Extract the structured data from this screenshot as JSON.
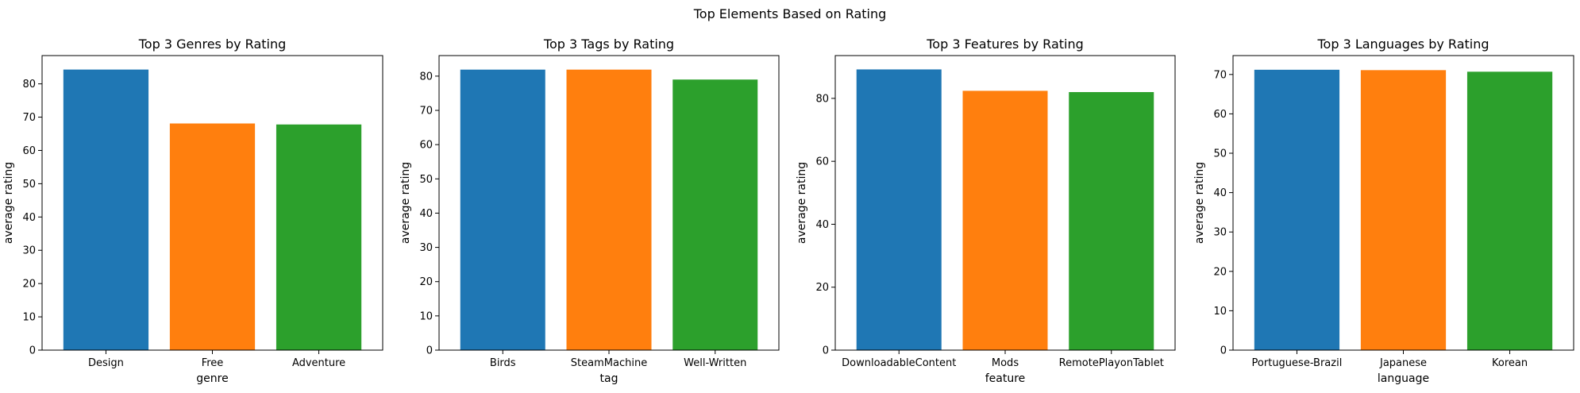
{
  "figure": {
    "suptitle": "Top Elements Based on Rating"
  },
  "chart_data": [
    {
      "type": "bar",
      "title": "Top 3 Genres by Rating",
      "xlabel": "genre",
      "ylabel": "average rating",
      "categories": [
        "Design",
        "Free",
        "Adventure"
      ],
      "values": [
        84.3,
        68.1,
        67.8
      ],
      "colors": [
        "#1f77b4",
        "#ff7f0e",
        "#2ca02c"
      ],
      "ylim": [
        0,
        88.5
      ],
      "yticks": [
        0,
        10,
        20,
        30,
        40,
        50,
        60,
        70,
        80
      ],
      "grid": false
    },
    {
      "type": "bar",
      "title": "Top 3 Tags by Rating",
      "xlabel": "tag",
      "ylabel": "average rating",
      "categories": [
        "Birds",
        "SteamMachine",
        "Well-Written"
      ],
      "values": [
        81.9,
        81.9,
        79.0
      ],
      "colors": [
        "#1f77b4",
        "#ff7f0e",
        "#2ca02c"
      ],
      "ylim": [
        0,
        86
      ],
      "yticks": [
        0,
        10,
        20,
        30,
        40,
        50,
        60,
        70,
        80
      ],
      "grid": false
    },
    {
      "type": "bar",
      "title": "Top 3 Features by Rating",
      "xlabel": "feature",
      "ylabel": "average rating",
      "categories": [
        "DownloadableContent",
        "Mods",
        "RemotePlayonTablet"
      ],
      "values": [
        89.2,
        82.4,
        82.0
      ],
      "colors": [
        "#1f77b4",
        "#ff7f0e",
        "#2ca02c"
      ],
      "ylim": [
        0,
        93.6
      ],
      "yticks": [
        0,
        20,
        40,
        60,
        80
      ],
      "grid": false
    },
    {
      "type": "bar",
      "title": "Top 3 Languages by Rating",
      "xlabel": "language",
      "ylabel": "average rating",
      "categories": [
        "Portuguese-Brazil",
        "Japanese",
        "Korean"
      ],
      "values": [
        71.2,
        71.1,
        70.7
      ],
      "colors": [
        "#1f77b4",
        "#ff7f0e",
        "#2ca02c"
      ],
      "ylim": [
        0,
        74.8
      ],
      "yticks": [
        0,
        10,
        20,
        30,
        40,
        50,
        60,
        70
      ],
      "grid": false
    }
  ]
}
